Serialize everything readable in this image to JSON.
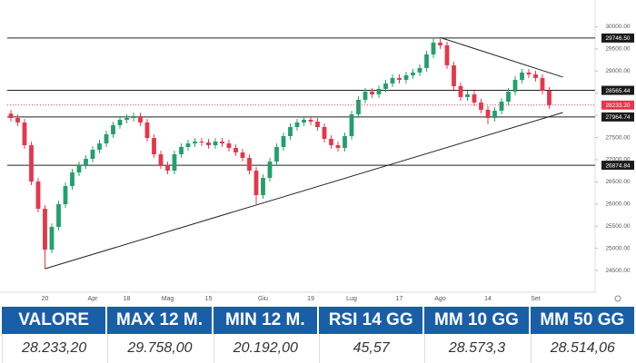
{
  "chart_data": {
    "type": "candlestick",
    "open": [
      28040,
      27942,
      27840,
      27327,
      26507,
      25892,
      24970,
      25482,
      25995,
      26405,
      26712,
      26876,
      27020,
      27225,
      27368,
      27573,
      27778,
      27901,
      27942,
      27983,
      27840,
      27491,
      27122,
      26876,
      26753,
      27122,
      27286,
      27368,
      27409,
      27389,
      27327,
      27409,
      27368,
      27266,
      27163,
      27040,
      26753,
      26200,
      26589,
      26958,
      27286,
      27532,
      27737,
      27840,
      27901,
      27860,
      27737,
      27471,
      27327,
      27266,
      27532,
      28024,
      28352,
      28537,
      28475,
      28598,
      28721,
      28844,
      28803,
      28906,
      28967,
      29070,
      29377,
      29644,
      29582,
      29131,
      28660,
      28414,
      28475,
      28291,
      28127,
      27942,
      28106,
      28311,
      28537,
      28803,
      28967,
      28926,
      28844,
      28557
    ],
    "high": [
      28120,
      28022,
      27920,
      27407,
      26587,
      25972,
      25562,
      26075,
      26485,
      26792,
      26956,
      27100,
      27305,
      27448,
      27653,
      27858,
      27981,
      28022,
      28063,
      28063,
      27920,
      27571,
      27202,
      26956,
      27202,
      27366,
      27448,
      27489,
      27489,
      27469,
      27489,
      27489,
      27448,
      27346,
      27243,
      27120,
      26833,
      26669,
      27038,
      27366,
      27612,
      27817,
      27920,
      27981,
      27981,
      27940,
      27817,
      27551,
      27407,
      27612,
      28104,
      28432,
      28617,
      28617,
      28678,
      28801,
      28924,
      28924,
      28986,
      29047,
      29150,
      29457,
      29758,
      29724,
      29662,
      29211,
      28740,
      28555,
      28555,
      28371,
      28207,
      28186,
      28391,
      28617,
      28883,
      29047,
      29047,
      29006,
      28924,
      28637
    ],
    "low": [
      27862,
      27760,
      27247,
      26427,
      25812,
      24539,
      24890,
      25402,
      25915,
      26325,
      26632,
      26796,
      26940,
      27145,
      27288,
      27493,
      27698,
      27821,
      27862,
      27760,
      27411,
      27042,
      26796,
      26673,
      26673,
      27042,
      27206,
      27288,
      27309,
      27247,
      27247,
      27288,
      27186,
      27083,
      26960,
      26673,
      25995,
      26120,
      26509,
      26878,
      27206,
      27452,
      27657,
      27760,
      27780,
      27657,
      27391,
      27247,
      27186,
      27186,
      27452,
      27944,
      28272,
      28395,
      28395,
      28518,
      28641,
      28723,
      28723,
      28826,
      28887,
      28990,
      29297,
      29502,
      29051,
      28580,
      28334,
      28334,
      28211,
      28047,
      27800,
      27862,
      28026,
      28231,
      28457,
      28723,
      28846,
      28764,
      28477,
      28153
    ],
    "close": [
      27942,
      27840,
      27327,
      26507,
      25892,
      24970,
      25482,
      25995,
      26405,
      26712,
      26876,
      27020,
      27225,
      27368,
      27573,
      27778,
      27901,
      27942,
      27983,
      27840,
      27491,
      27122,
      26876,
      26753,
      27122,
      27286,
      27368,
      27409,
      27389,
      27327,
      27409,
      27368,
      27266,
      27163,
      27040,
      26753,
      26200,
      26589,
      26958,
      27286,
      27532,
      27737,
      27840,
      27901,
      27860,
      27737,
      27471,
      27327,
      27266,
      27532,
      28024,
      28352,
      28537,
      28475,
      28598,
      28721,
      28844,
      28803,
      28906,
      28967,
      29070,
      29377,
      29644,
      29582,
      29131,
      28660,
      28414,
      28475,
      28291,
      28127,
      27942,
      28106,
      28311,
      28537,
      28803,
      28967,
      28926,
      28844,
      28557,
      28233.2
    ],
    "up_color": "#22a06b",
    "down_color": "#e5374a",
    "x_labels": [
      {
        "index": 5,
        "label": "20"
      },
      {
        "index": 12,
        "label": "Apr"
      },
      {
        "index": 17,
        "label": "18"
      },
      {
        "index": 23,
        "label": "Mag"
      },
      {
        "index": 29,
        "label": "15"
      },
      {
        "index": 37,
        "label": "Giu"
      },
      {
        "index": 44,
        "label": "19"
      },
      {
        "index": 50,
        "label": "Lug"
      },
      {
        "index": 57,
        "label": "17"
      },
      {
        "index": 63,
        "label": "Ago"
      },
      {
        "index": 70,
        "label": "14"
      },
      {
        "index": 77,
        "label": "Set"
      }
    ],
    "ylim": [
      24050,
      30400
    ],
    "yticks": [
      {
        "value": 30000,
        "label": "30000.00"
      },
      {
        "value": 29500,
        "label": "29500.00"
      },
      {
        "value": 29000,
        "label": "29000.00"
      },
      {
        "value": 28500,
        "label": "28500.00"
      },
      {
        "value": 28000,
        "label": "28000.00"
      },
      {
        "value": 27500,
        "label": "27500.00"
      },
      {
        "value": 27000,
        "label": "27000.00"
      },
      {
        "value": 26500,
        "label": "26500.00"
      },
      {
        "value": 26000,
        "label": "26000.00"
      },
      {
        "value": 25500,
        "label": "25500.00"
      },
      {
        "value": 25000,
        "label": "25000.00"
      },
      {
        "value": 24500,
        "label": "24500.00"
      }
    ],
    "levels": [
      {
        "value": 29746.5,
        "label": "29746.50"
      },
      {
        "value": 28565.44,
        "label": "28565.44"
      },
      {
        "value": 27964.74,
        "label": "27964.74"
      },
      {
        "value": 26874.84,
        "label": "26874.84"
      }
    ],
    "price_marker": {
      "value": 28233.2,
      "label": "28233.20"
    },
    "trendlines": [
      {
        "x": [
          5,
          81
        ],
        "y": [
          24539,
          28065
        ]
      },
      {
        "x": [
          63,
          81
        ],
        "y": [
          29758,
          28865
        ]
      }
    ]
  },
  "table": {
    "headers": [
      "VALORE",
      "MAX 12 M.",
      "MIN 12 M.",
      "RSI 14 GG",
      "MM 10 GG",
      "MM 50 GG"
    ],
    "values": [
      "28.233,20",
      "29.758,00",
      "20.192,00",
      "45,57",
      "28.573,3",
      "28.514,06"
    ]
  }
}
